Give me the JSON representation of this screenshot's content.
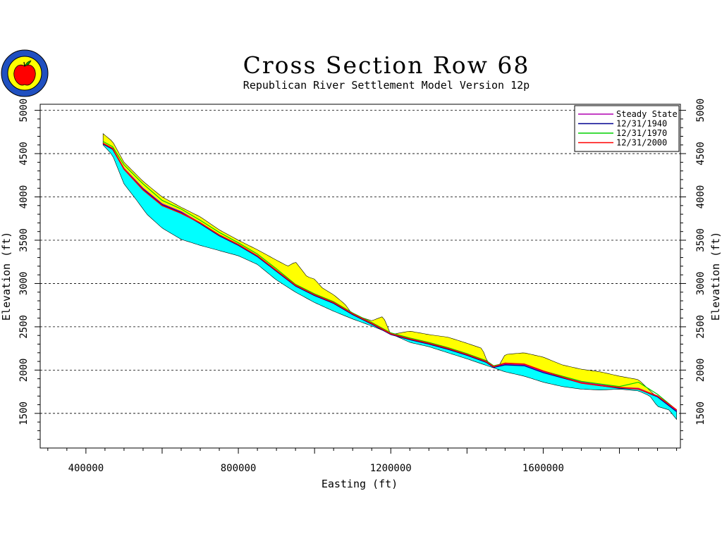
{
  "chart_data": {
    "type": "line",
    "title": "Cross Section Row 68",
    "subtitle": "Republican River Settlement Model Version 12p",
    "xlabel": "Easting (ft)",
    "ylabel": "Elevation (ft)",
    "xlim": [
      280000,
      1960000
    ],
    "ylim": [
      1100000,
      5000
    ],
    "xticks": [
      400000,
      800000,
      1200000,
      1600000
    ],
    "xtick_labels": [
      "400000",
      "800000",
      "1200000",
      "1600000"
    ],
    "yticks": [
      1500,
      2000,
      2500,
      3000,
      3500,
      4000,
      4500,
      5000
    ],
    "ytick_labels": [
      "1500",
      "2000",
      "2500",
      "3000",
      "3500",
      "4000",
      "4500",
      "5000"
    ],
    "grid": "horizontal dashed",
    "legend_position": "top-right",
    "colors": {
      "land_surface_fill": "#ffff00",
      "aquifer_fill": "#00ffff",
      "steady_state": "#b000b0",
      "y1940": "#000090",
      "y1970": "#00d000",
      "y2000": "#ff0000"
    },
    "land_surface": {
      "x": [
        445000,
        470000,
        500000,
        550000,
        600000,
        650000,
        700000,
        750000,
        800000,
        850000,
        900000,
        930000,
        950000,
        980000,
        1000000,
        1020000,
        1050000,
        1080000,
        1100000,
        1150000,
        1180000,
        1200000,
        1250000,
        1300000,
        1350000,
        1400000,
        1440000,
        1460000,
        1480000,
        1500000,
        1550000,
        1600000,
        1650000,
        1700000,
        1750000,
        1800000,
        1850000,
        1900000,
        1950000
      ],
      "y": [
        4730,
        4640,
        4400,
        4180,
        4000,
        3880,
        3770,
        3620,
        3500,
        3390,
        3270,
        3200,
        3250,
        3080,
        3050,
        2950,
        2870,
        2760,
        2640,
        2570,
        2620,
        2410,
        2450,
        2410,
        2380,
        2310,
        2250,
        2020,
        2020,
        2180,
        2200,
        2150,
        2060,
        2010,
        1980,
        1930,
        1890,
        1680,
        1530
      ]
    },
    "aquifer_base": {
      "x": [
        445000,
        470000,
        500000,
        530000,
        560000,
        600000,
        650000,
        700000,
        750000,
        800000,
        850000,
        900000,
        950000,
        1000000,
        1050000,
        1100000,
        1150000,
        1200000,
        1250000,
        1300000,
        1350000,
        1400000,
        1460000,
        1500000,
        1550000,
        1600000,
        1650000,
        1700000,
        1750000,
        1800000,
        1850000,
        1880000,
        1900000,
        1930000,
        1950000
      ],
      "y": [
        4600,
        4480,
        4150,
        3980,
        3800,
        3640,
        3510,
        3440,
        3380,
        3320,
        3220,
        3040,
        2900,
        2780,
        2680,
        2590,
        2510,
        2420,
        2320,
        2270,
        2200,
        2130,
        2040,
        1980,
        1930,
        1860,
        1810,
        1780,
        1770,
        1780,
        1760,
        1700,
        1580,
        1540,
        1430
      ]
    },
    "series": [
      {
        "name": "Steady State",
        "x": [
          445000,
          470000,
          500000,
          550000,
          600000,
          650000,
          700000,
          750000,
          800000,
          850000,
          900000,
          950000,
          1000000,
          1050000,
          1100000,
          1150000,
          1200000,
          1250000,
          1300000,
          1350000,
          1400000,
          1450000,
          1470000,
          1500000,
          1550000,
          1600000,
          1650000,
          1700000,
          1750000,
          1800000,
          1850000,
          1900000,
          1950000
        ],
        "values": [
          4620,
          4560,
          4330,
          4100,
          3920,
          3830,
          3700,
          3560,
          3450,
          3320,
          3150,
          2980,
          2870,
          2780,
          2650,
          2540,
          2420,
          2360,
          2310,
          2250,
          2180,
          2100,
          2040,
          2070,
          2060,
          1980,
          1920,
          1860,
          1830,
          1800,
          1790,
          1700,
          1530
        ]
      },
      {
        "name": "12/31/1940",
        "x": [
          445000,
          470000,
          500000,
          550000,
          600000,
          650000,
          700000,
          750000,
          800000,
          850000,
          900000,
          950000,
          1000000,
          1050000,
          1100000,
          1150000,
          1200000,
          1250000,
          1300000,
          1350000,
          1400000,
          1450000,
          1470000,
          1500000,
          1550000,
          1600000,
          1650000,
          1700000,
          1750000,
          1800000,
          1850000,
          1900000,
          1950000
        ],
        "values": [
          4610,
          4550,
          4320,
          4090,
          3910,
          3820,
          3690,
          3550,
          3440,
          3310,
          3140,
          2970,
          2860,
          2770,
          2640,
          2530,
          2410,
          2350,
          2300,
          2240,
          2170,
          2090,
          2030,
          2060,
          2050,
          1970,
          1910,
          1850,
          1820,
          1790,
          1780,
          1690,
          1520
        ]
      },
      {
        "name": "12/31/1970",
        "x": [
          445000,
          470000,
          500000,
          550000,
          600000,
          650000,
          700000,
          750000,
          800000,
          850000,
          900000,
          950000,
          1000000,
          1050000,
          1100000,
          1150000,
          1200000,
          1250000,
          1300000,
          1350000,
          1400000,
          1450000,
          1470000,
          1500000,
          1550000,
          1600000,
          1650000,
          1700000,
          1750000,
          1800000,
          1850000,
          1900000,
          1950000
        ],
        "values": [
          4640,
          4580,
          4370,
          4150,
          3960,
          3860,
          3730,
          3590,
          3470,
          3340,
          3170,
          2990,
          2880,
          2790,
          2660,
          2550,
          2430,
          2370,
          2320,
          2260,
          2190,
          2110,
          2050,
          2080,
          2070,
          1990,
          1930,
          1870,
          1840,
          1810,
          1860,
          1720,
          1540
        ]
      },
      {
        "name": "12/31/2000",
        "x": [
          445000,
          470000,
          500000,
          550000,
          600000,
          650000,
          700000,
          750000,
          800000,
          850000,
          900000,
          950000,
          1000000,
          1050000,
          1100000,
          1150000,
          1200000,
          1250000,
          1300000,
          1350000,
          1400000,
          1450000,
          1470000,
          1500000,
          1550000,
          1600000,
          1650000,
          1700000,
          1750000,
          1800000,
          1850000,
          1900000,
          1950000
        ],
        "values": [
          4620,
          4560,
          4320,
          4080,
          3900,
          3810,
          3700,
          3560,
          3450,
          3320,
          3150,
          2980,
          2870,
          2780,
          2650,
          2540,
          2420,
          2360,
          2310,
          2250,
          2180,
          2100,
          2040,
          2080,
          2070,
          1990,
          1920,
          1850,
          1820,
          1800,
          1780,
          1700,
          1540
        ]
      }
    ]
  }
}
